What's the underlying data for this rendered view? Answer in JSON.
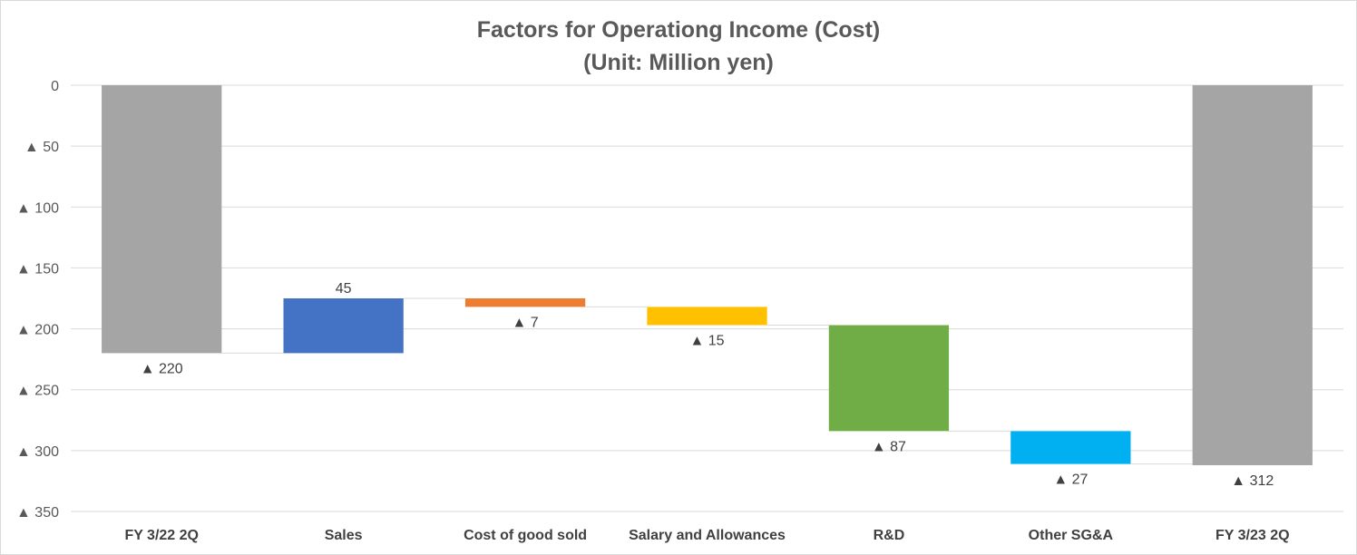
{
  "chart_data": {
    "type": "bar",
    "subtype": "waterfall",
    "title": "Factors for Operationg Income (Cost)",
    "subtitle": "(Unit: Million yen)",
    "xlabel": "",
    "ylabel": "",
    "ylim": [
      0,
      -350
    ],
    "y_axis_direction": "zero-at-top, negative values downward",
    "y_ticks": [
      0,
      -50,
      -100,
      -150,
      -200,
      -250,
      -300,
      -350
    ],
    "y_tick_labels": [
      "0",
      "▲ 50",
      "▲ 100",
      "▲ 150",
      "▲ 200",
      "▲ 250",
      "▲ 300",
      "▲ 350"
    ],
    "grid": true,
    "legend": "none",
    "categories": [
      "FY 3/22 2Q",
      "Sales",
      "Cost of good sold",
      "Salary and Allowances",
      "R&D",
      "Other SG&A",
      "FY 3/23 2Q"
    ],
    "values": [
      -220,
      45,
      -7,
      -15,
      -87,
      -27,
      -312
    ],
    "bar_roles": [
      "total",
      "change",
      "change",
      "change",
      "change",
      "change",
      "total"
    ],
    "data_labels": [
      "▲ 220",
      "45",
      "▲ 7",
      "▲ 15",
      "▲ 87",
      "▲ 27",
      "▲ 312"
    ],
    "colors": [
      "#a5a5a5",
      "#4472c4",
      "#ed7d31",
      "#ffc000",
      "#70ad47",
      "#00b0f0",
      "#a5a5a5"
    ]
  }
}
